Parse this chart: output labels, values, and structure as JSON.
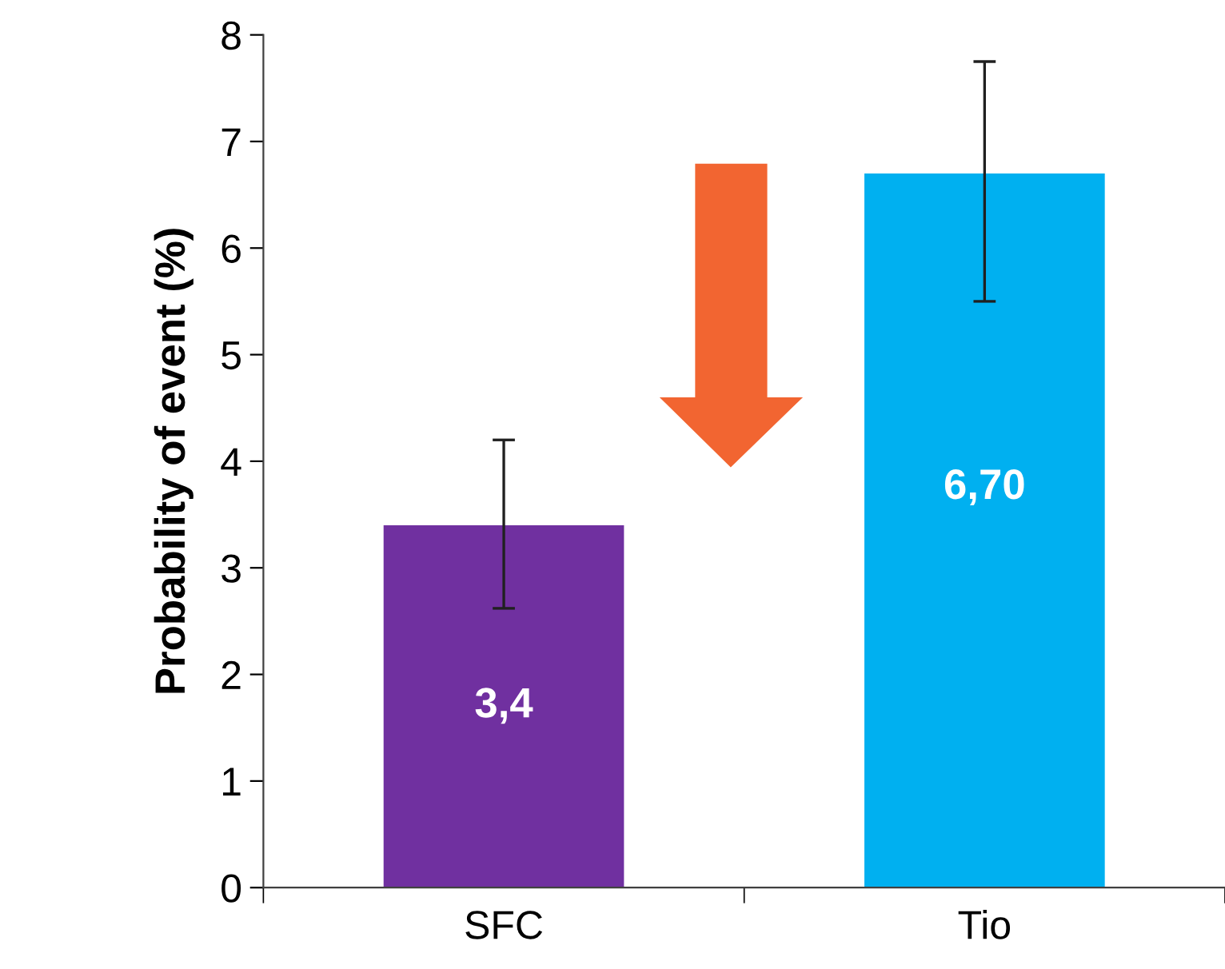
{
  "chart_data": {
    "type": "bar",
    "ylabel": "Probability of event (%)",
    "categories": [
      "SFC",
      "Tio"
    ],
    "values": [
      3.4,
      6.7
    ],
    "colors": [
      "#7030a0",
      "#00b0f0"
    ],
    "errors": [
      [
        2.62,
        4.2
      ],
      [
        5.5,
        7.75
      ]
    ],
    "value_labels": [
      "3,4",
      "6,70"
    ],
    "ylim": [
      0,
      8
    ],
    "yticks": [
      0,
      1,
      2,
      3,
      4,
      5,
      6,
      7,
      8
    ],
    "grid": false,
    "legend": false
  }
}
